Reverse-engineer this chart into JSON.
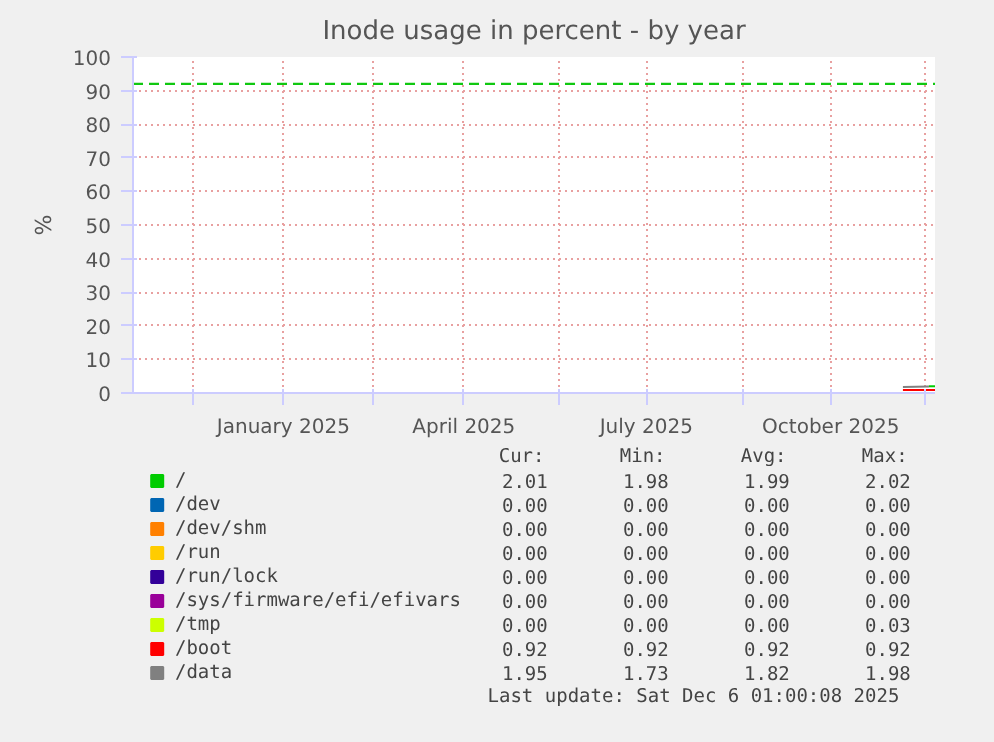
{
  "chart_data": {
    "type": "line",
    "title": "Inode usage in percent - by year",
    "ylabel": "%",
    "xlim": [
      "2024-11-01",
      "2025-12-06"
    ],
    "ylim": [
      0,
      100
    ],
    "yticks": [
      0,
      10,
      20,
      30,
      40,
      50,
      60,
      70,
      80,
      90,
      100
    ],
    "xticks": [
      {
        "value": "2024-12-01",
        "label": null
      },
      {
        "value": "2025-01-15",
        "label": "January 2025"
      },
      {
        "value": "2025-03-01",
        "label": null
      },
      {
        "value": "2025-04-15",
        "label": "April 2025"
      },
      {
        "value": "2025-06-01",
        "label": null
      },
      {
        "value": "2025-07-15",
        "label": "July 2025"
      },
      {
        "value": "2025-09-01",
        "label": null
      },
      {
        "value": "2025-10-15",
        "label": "October 2025"
      },
      {
        "value": "2025-12-01",
        "label": null
      }
    ],
    "grid": true,
    "legend": "bottom",
    "ref_lines": [
      {
        "axis": "y",
        "value": 92,
        "label": null,
        "color": "#11c811",
        "line_style": "dashed"
      }
    ],
    "series": [
      {
        "name": "/",
        "color": "#00cc00",
        "x": [
          "2025-12-03",
          "2025-12-06"
        ],
        "values": [
          2.0,
          2.0
        ]
      },
      {
        "name": "/dev",
        "color": "#0066b3"
      },
      {
        "name": "/dev/shm",
        "color": "#ff8000"
      },
      {
        "name": "/run",
        "color": "#ffcc00"
      },
      {
        "name": "/run/lock",
        "color": "#330099"
      },
      {
        "name": "/sys/firmware/efi/efivars",
        "color": "#990099"
      },
      {
        "name": "/tmp",
        "color": "#ccff00"
      },
      {
        "name": "/boot",
        "color": "#ff0000",
        "x": [
          "2025-11-20",
          "2025-12-06"
        ],
        "values": [
          0.9,
          0.9
        ]
      },
      {
        "name": "/data",
        "color": "#808080",
        "x": [
          "2025-11-20",
          "2025-12-03"
        ],
        "values": [
          1.8,
          1.9
        ]
      }
    ],
    "annotations": [
      "Cur:",
      "Min:",
      "Avg:",
      "Max:",
      "2.01",
      "1.98",
      "1.99",
      "2.02",
      "0.00",
      "0.00",
      "0.00",
      "0.00",
      "0.00",
      "0.00",
      "0.00",
      "0.00",
      "0.00",
      "0.00",
      "0.00",
      "0.00",
      "0.00",
      "0.00",
      "0.00",
      "0.00",
      "0.00",
      "0.00",
      "0.00",
      "0.00",
      "0.00",
      "0.00",
      "0.00",
      "0.03",
      "0.92",
      "0.92",
      "0.92",
      "0.92",
      "1.95",
      "1.73",
      "1.82",
      "1.98",
      "Last update: Sat Dec  6 01:00:08 2025"
    ]
  }
}
